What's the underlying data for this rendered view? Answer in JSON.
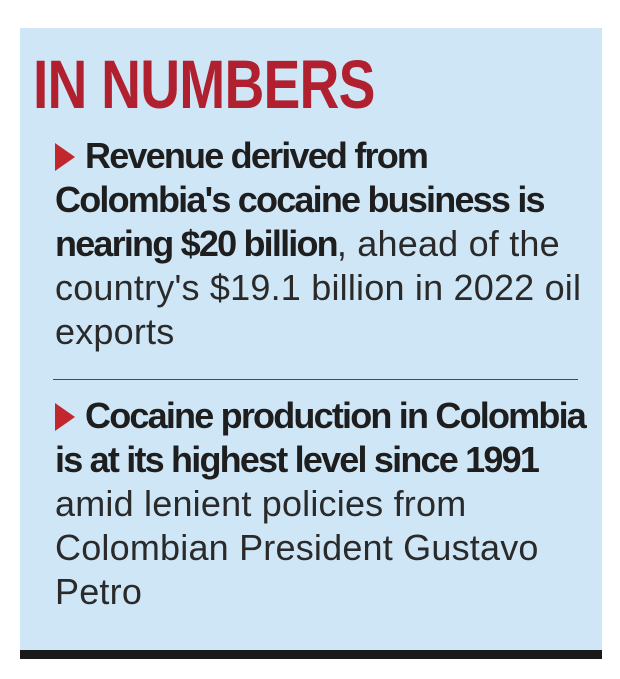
{
  "title": "IN NUMBERS",
  "facts": [
    {
      "bold": "Revenue derived from Colombia's cocaine business is nearing $20 billion",
      "rest": ", ahead of the country's $19.1 billion in 2022 oil exports"
    },
    {
      "bold": "Cocaine production in Colombia is at its highest level since 1991",
      "rest": " amid lenient policies from Colombian President Gustavo Petro"
    }
  ],
  "colors": {
    "panel_background": "#cfe6f6",
    "title_red": "#b0202f",
    "bullet_red": "#c1272d",
    "body_text": "#1e1e1e",
    "bottom_rule": "#1a1a1a"
  },
  "icons": {
    "bullet": "red-triangle-bullet-icon"
  }
}
